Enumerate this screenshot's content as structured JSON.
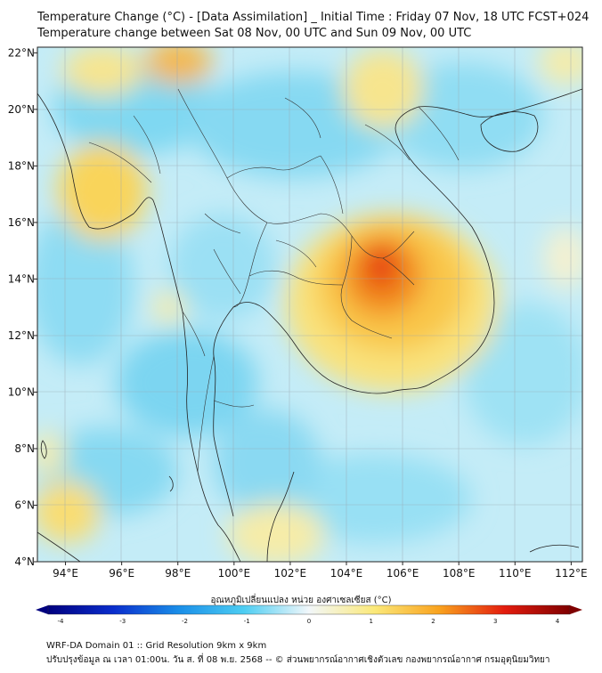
{
  "title_line1": "Temperature Change (°C) - [Data Assimilation] _ Initial Time : Friday 07 Nov, 18 UTC FCST+024",
  "title_line2": "Temperature change between Sat 08 Nov, 00 UTC and Sun 09 Nov, 00 UTC",
  "map": {
    "lon_ticks": [
      "94°E",
      "96°E",
      "98°E",
      "100°E",
      "102°E",
      "104°E",
      "106°E",
      "108°E",
      "110°E",
      "112°E"
    ],
    "lat_ticks": [
      "22°N",
      "20°N",
      "18°N",
      "16°N",
      "14°N",
      "12°N",
      "10°N",
      "8°N",
      "6°N",
      "4°N"
    ],
    "lon_values": [
      94,
      96,
      98,
      100,
      102,
      104,
      106,
      108,
      110,
      112
    ],
    "lat_values": [
      22,
      20,
      18,
      16,
      14,
      12,
      10,
      8,
      6,
      4
    ]
  },
  "colorbar": {
    "title": "อุณหภูมิเปลี่ยนแปลง หน่วย องศาเซลเซียส (°C)",
    "ticks": [
      "-4",
      "-3",
      "-2",
      "-1",
      "0",
      "1",
      "2",
      "3",
      "4"
    ],
    "tick_values": [
      -4,
      -3,
      -2,
      -1,
      0,
      1,
      2,
      3,
      4
    ],
    "min": -4,
    "max": 4
  },
  "footer_line1": "WRF-DA Domain 01 :: Grid Resolution 9km x 9km",
  "footer_line2": "ปรับปรุงข้อมูล ณ เวลา 01:00น. วัน ส. ที่ 08 พ.ย. 2568 -- © ส่วนพยากรณ์อากาศเชิงตัวเลข กองพยากรณ์อากาศ กรมอุตุนิยมวิทยา"
}
